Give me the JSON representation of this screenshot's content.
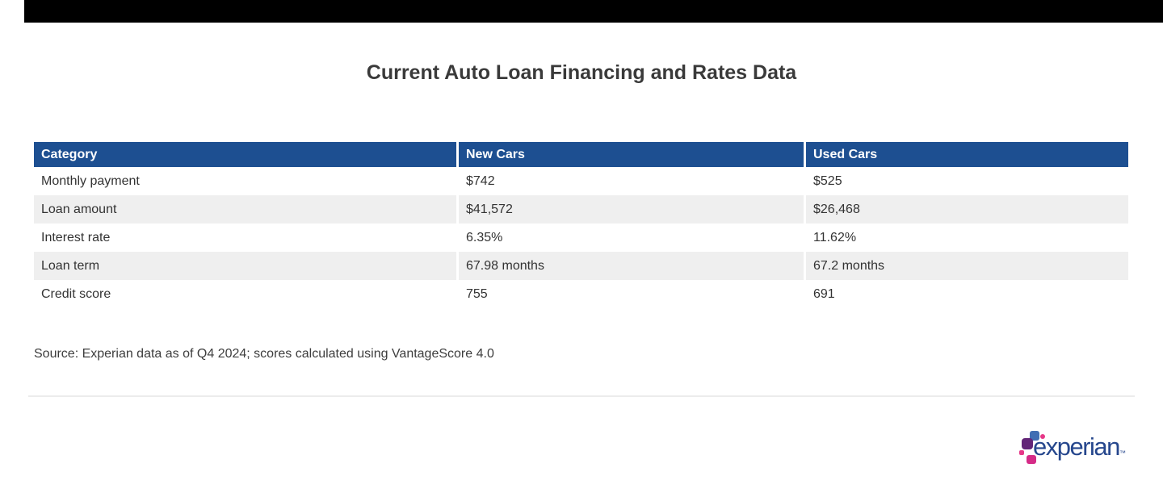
{
  "chart_data": {
    "type": "table",
    "title": "Current Auto Loan Financing and Rates Data",
    "columns": [
      "Category",
      "New Cars",
      "Used Cars"
    ],
    "rows": [
      [
        "Monthly payment",
        "$742",
        "$525"
      ],
      [
        "Loan amount",
        "$41,572",
        "$26,468"
      ],
      [
        "Interest rate",
        "6.35%",
        "11.62%"
      ],
      [
        "Loan term",
        "67.98 months",
        "67.2 months"
      ],
      [
        "Credit score",
        "755",
        "691"
      ]
    ],
    "source": "Source: Experian data as of Q4 2024; scores calculated using VantageScore 4.0",
    "legend_position": "none",
    "grid": false
  },
  "logo": {
    "wordmark": "experian",
    "trademark": "™"
  },
  "colors": {
    "top_bar": "#000000",
    "table_header_bg": "#1d4f91",
    "table_header_text": "#ffffff",
    "row_stripe": "#efefef",
    "body_text": "#333333",
    "title_text": "#3a3a3a",
    "divider": "#ececec",
    "logo_wordmark": "#26478d",
    "logo_blue": "#406EB3",
    "logo_purple": "#632678",
    "logo_pink": "#E63888",
    "logo_magenta": "#D52B87"
  }
}
